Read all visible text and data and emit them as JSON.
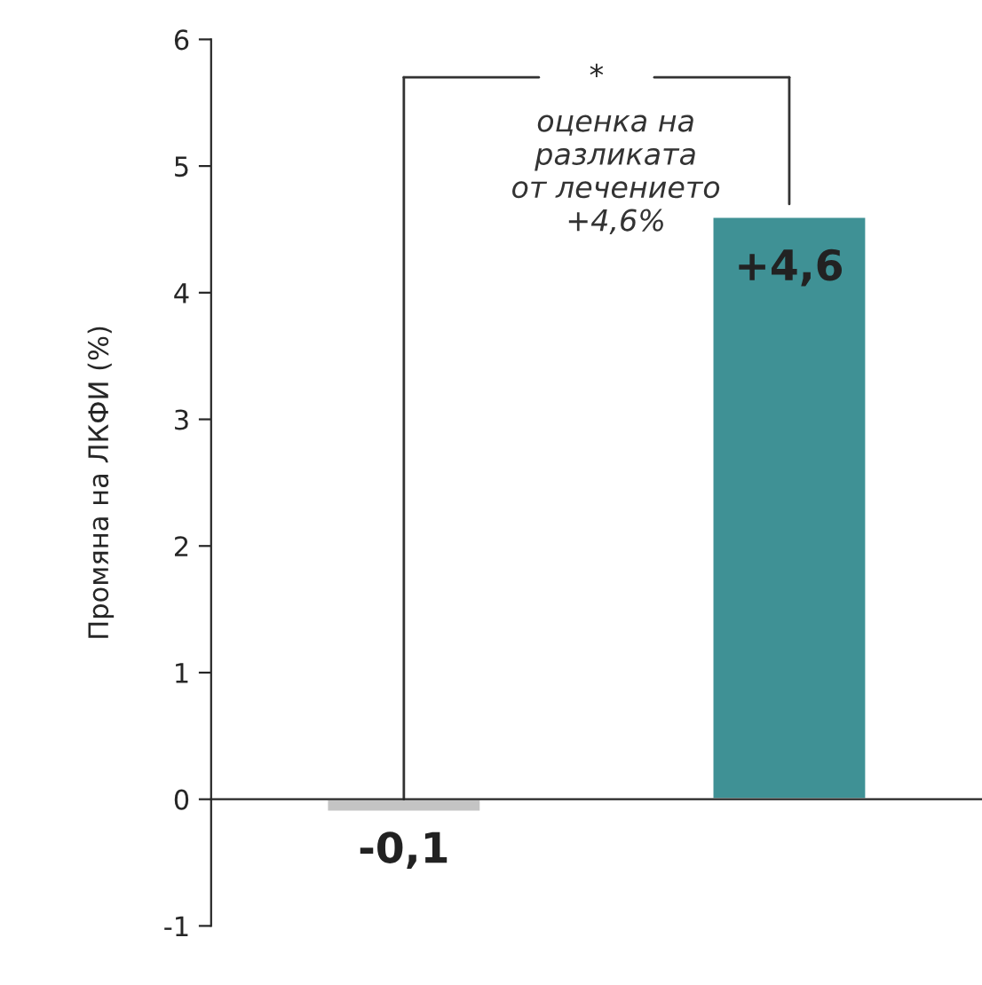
{
  "chart_data": {
    "type": "bar",
    "ylabel": "Промяна на ЛКФИ (%)",
    "categories": [
      null,
      null
    ],
    "values": [
      -0.1,
      4.6
    ],
    "colors": [
      "#c4c4c4",
      "#3f9195"
    ],
    "value_labels": [
      "-0,1",
      "+4,6"
    ],
    "ylim": [
      -1,
      6
    ],
    "yticks": [
      -1,
      0,
      1,
      2,
      3,
      4,
      5,
      6
    ],
    "annotations": [
      "*",
      "оценка на\nразликата\nот лечението\n+4,6%"
    ],
    "grid": false
  }
}
